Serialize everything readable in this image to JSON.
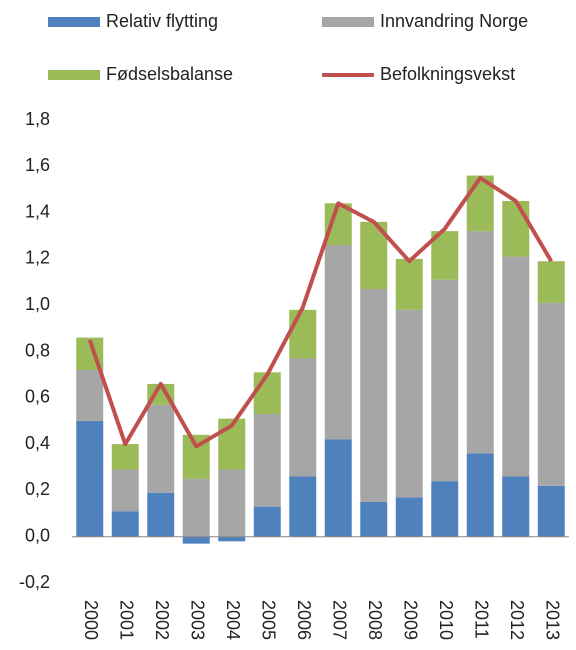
{
  "chart_data": {
    "type": "bar",
    "stacked": true,
    "categories": [
      "2000",
      "2001",
      "2002",
      "2003",
      "2004",
      "2005",
      "2006",
      "2007",
      "2008",
      "2009",
      "2010",
      "2011",
      "2012",
      "2013"
    ],
    "series": [
      {
        "name": "Relativ flytting",
        "color": "#4f81bd",
        "values": [
          0.5,
          0.11,
          0.19,
          -0.03,
          -0.02,
          0.13,
          0.26,
          0.42,
          0.15,
          0.17,
          0.24,
          0.36,
          0.26,
          0.22
        ]
      },
      {
        "name": "Innvandring Norge",
        "color": "#a6a6a6",
        "values": [
          0.22,
          0.18,
          0.38,
          0.25,
          0.29,
          0.4,
          0.51,
          0.84,
          0.92,
          0.81,
          0.87,
          0.96,
          0.95,
          0.79
        ]
      },
      {
        "name": "Fødselsbalanse",
        "color": "#9bbb59",
        "values": [
          0.14,
          0.11,
          0.09,
          0.19,
          0.22,
          0.18,
          0.21,
          0.18,
          0.29,
          0.22,
          0.21,
          0.24,
          0.24,
          0.18
        ]
      },
      {
        "name": "Befolkningsvekst",
        "color": "#c0504d",
        "type": "line",
        "values": [
          0.85,
          0.4,
          0.66,
          0.39,
          0.48,
          0.7,
          0.99,
          1.44,
          1.36,
          1.19,
          1.33,
          1.55,
          1.45,
          1.19
        ]
      }
    ],
    "ylim": [
      -0.2,
      1.8
    ],
    "yticks": [
      {
        "value": -0.2,
        "label": "-0,2"
      },
      {
        "value": 0,
        "label": "0,0"
      },
      {
        "value": 0.2,
        "label": "0,2"
      },
      {
        "value": 0.4,
        "label": "0,4"
      },
      {
        "value": 0.6,
        "label": "0,6"
      },
      {
        "value": 0.8,
        "label": "0,8"
      },
      {
        "value": 1.0,
        "label": "1,0"
      },
      {
        "value": 1.2,
        "label": "1,2"
      },
      {
        "value": 1.4,
        "label": "1,4"
      },
      {
        "value": 1.6,
        "label": "1,6"
      },
      {
        "value": 1.8,
        "label": "1,8"
      }
    ],
    "grid": false,
    "legend": "top"
  }
}
